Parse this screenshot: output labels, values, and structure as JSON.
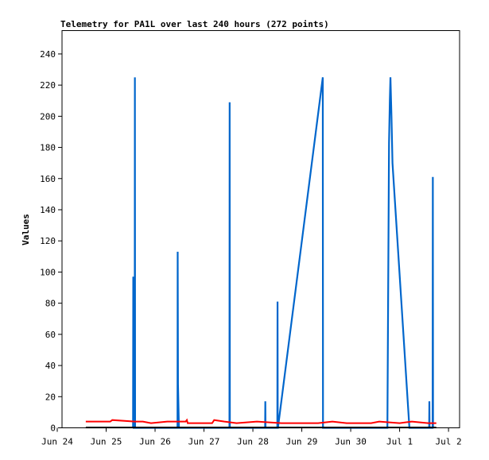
{
  "chart_data": {
    "type": "line",
    "title": "Telemetry for PA1L over last 240 hours (272 points)",
    "xlabel": "",
    "ylabel": "Values",
    "ylim": [
      0,
      255
    ],
    "yticks": [
      0,
      20,
      40,
      60,
      80,
      100,
      120,
      140,
      160,
      180,
      200,
      220,
      240
    ],
    "xlim": [
      0,
      240
    ],
    "xticks": [
      {
        "x": 0,
        "label": "Jun 24"
      },
      {
        "x": 24,
        "label": "Jun 25"
      },
      {
        "x": 48,
        "label": "Jun 26"
      },
      {
        "x": 72,
        "label": "Jun 27"
      },
      {
        "x": 96,
        "label": "Jun 28"
      },
      {
        "x": 120,
        "label": "Jun 29"
      },
      {
        "x": 144,
        "label": "Jun 30"
      },
      {
        "x": 168,
        "label": "Jul 1"
      },
      {
        "x": 192,
        "label": "Jul 2"
      }
    ],
    "grid": false,
    "series": [
      {
        "color": "#0066cc",
        "points": [
          [
            37.2,
            0
          ],
          [
            37.3,
            97
          ],
          [
            37.4,
            49
          ],
          [
            37.5,
            0
          ],
          [
            37.6,
            0
          ],
          [
            38.0,
            0
          ],
          [
            38.1,
            225
          ],
          [
            38.2,
            0
          ],
          [
            59.0,
            0
          ],
          [
            59.1,
            113
          ],
          [
            59.25,
            28
          ],
          [
            59.7,
            0
          ],
          [
            84.5,
            0
          ],
          [
            84.6,
            209
          ],
          [
            84.7,
            0
          ],
          [
            102.0,
            0
          ],
          [
            102.1,
            17
          ],
          [
            102.2,
            0
          ],
          [
            108.0,
            0
          ],
          [
            108.1,
            81
          ],
          [
            108.2,
            0
          ],
          [
            108.3,
            0
          ],
          [
            130.3,
            225
          ],
          [
            130.4,
            0
          ],
          [
            162.0,
            0
          ],
          [
            162.2,
            45
          ],
          [
            162.8,
            183
          ],
          [
            163.2,
            210
          ],
          [
            163.5,
            225
          ],
          [
            164.0,
            200
          ],
          [
            164.5,
            170
          ],
          [
            172.8,
            0
          ],
          [
            182.5,
            0
          ],
          [
            182.6,
            17
          ],
          [
            182.7,
            0
          ],
          [
            184.2,
            0
          ],
          [
            184.3,
            161
          ],
          [
            184.4,
            0
          ]
        ]
      },
      {
        "color": "#ff0000",
        "points": [
          [
            14,
            4
          ],
          [
            26,
            4
          ],
          [
            27,
            5
          ],
          [
            38,
            4
          ],
          [
            42,
            4
          ],
          [
            46,
            3
          ],
          [
            54,
            4
          ],
          [
            63,
            4
          ],
          [
            63.6,
            5
          ],
          [
            64,
            3
          ],
          [
            76,
            3
          ],
          [
            77,
            5
          ],
          [
            82,
            4
          ],
          [
            88,
            3
          ],
          [
            98,
            4
          ],
          [
            110,
            3
          ],
          [
            121,
            3
          ],
          [
            128,
            3
          ],
          [
            135,
            4
          ],
          [
            142,
            3
          ],
          [
            154,
            3
          ],
          [
            158,
            4
          ],
          [
            168,
            3
          ],
          [
            174,
            4
          ],
          [
            182,
            3
          ],
          [
            186,
            3
          ]
        ]
      },
      {
        "color": "#000000",
        "points": [
          [
            14,
            0.2
          ],
          [
            186,
            0.2
          ]
        ]
      }
    ]
  }
}
